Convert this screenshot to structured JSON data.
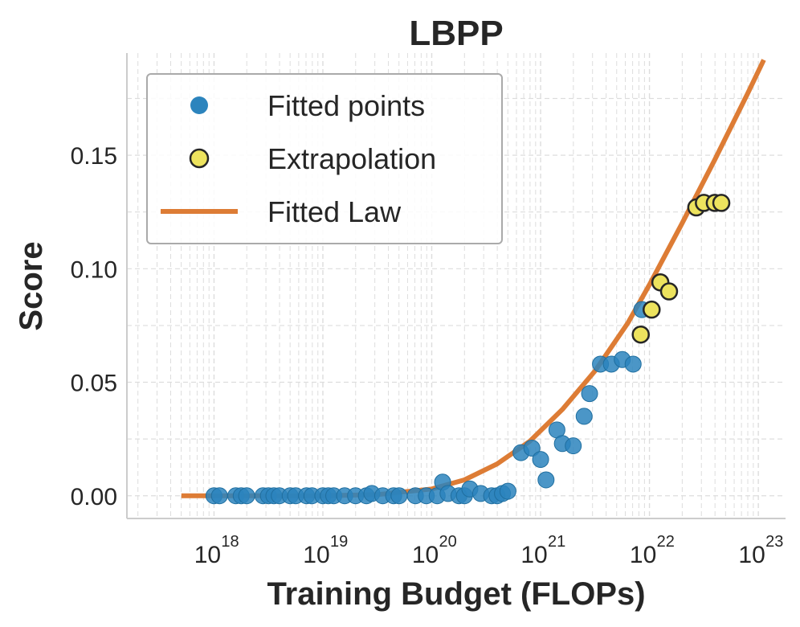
{
  "chart_data": {
    "type": "scatter",
    "title": "LBPP",
    "xlabel": "Training Budget (FLOPs)",
    "ylabel": "Score",
    "xscale": "log",
    "xlim_log10": [
      17.2,
      23.25
    ],
    "ylim": [
      -0.01,
      0.195
    ],
    "x_tick_base": "10",
    "x_ticks": [
      {
        "exp": "18",
        "log10": 18
      },
      {
        "exp": "19",
        "log10": 19
      },
      {
        "exp": "20",
        "log10": 20
      },
      {
        "exp": "21",
        "log10": 21
      },
      {
        "exp": "22",
        "log10": 22
      },
      {
        "exp": "23",
        "log10": 23
      }
    ],
    "y_ticks": [
      {
        "label": "0.00",
        "value": 0.0
      },
      {
        "label": "0.05",
        "value": 0.05
      },
      {
        "label": "0.10",
        "value": 0.1
      },
      {
        "label": "0.15",
        "value": 0.15
      }
    ],
    "grid": true,
    "legend_position": "top-left",
    "legend": {
      "fitted": "Fitted points",
      "extrap": "Extrapolation",
      "law": "Fitted Law"
    },
    "colors": {
      "fitted": "#2c84bd",
      "extrap": "#ede35e",
      "law": "#dd7c35",
      "text": "#262626",
      "grid": "#dddddd"
    },
    "fitted_law": {
      "log10_x": [
        17.7,
        18.0,
        18.5,
        19.0,
        19.5,
        20.0,
        20.3,
        20.6,
        20.9,
        21.2,
        21.5,
        21.8,
        22.0,
        22.3,
        22.6,
        22.9,
        23.05
      ],
      "y": [
        0.0,
        0.0,
        0.0,
        0.0,
        0.0005,
        0.003,
        0.007,
        0.014,
        0.024,
        0.038,
        0.055,
        0.076,
        0.093,
        0.12,
        0.148,
        0.177,
        0.192
      ]
    },
    "series": [
      {
        "name": "Fitted points",
        "log10_x": [
          18.0,
          18.05,
          18.2,
          18.25,
          18.3,
          18.45,
          18.5,
          18.55,
          18.6,
          18.7,
          18.75,
          18.85,
          18.9,
          19.0,
          19.05,
          19.1,
          19.2,
          19.3,
          19.4,
          19.45,
          19.55,
          19.65,
          19.7,
          19.85,
          19.95,
          20.05,
          20.1,
          20.15,
          20.25,
          20.3,
          20.35,
          20.45,
          20.55,
          20.6,
          20.65,
          20.7,
          20.82,
          20.92,
          21.0,
          21.05,
          21.15,
          21.2,
          21.3,
          21.4,
          21.45,
          21.55,
          21.65,
          21.75,
          21.85
        ],
        "values": [
          0.0,
          0.0,
          0.0,
          0.0,
          0.0,
          0.0,
          0.0,
          0.0,
          0.0,
          0.0,
          0.0,
          0.0,
          0.0,
          0.0,
          0.0,
          0.0,
          0.0,
          0.0,
          0.0,
          0.001,
          0.0,
          0.0,
          0.0,
          0.0,
          0.0,
          0.0,
          0.006,
          0.001,
          0.0,
          0.0,
          0.003,
          0.001,
          0.0,
          0.0,
          0.001,
          0.002,
          0.019,
          0.021,
          0.016,
          0.007,
          0.029,
          0.023,
          0.022,
          0.035,
          0.045,
          0.058,
          0.058,
          0.06,
          0.058
        ]
      },
      {
        "name": "Extrapolation",
        "log10_x": [
          21.92,
          22.02,
          22.1,
          22.18,
          22.43,
          22.5,
          22.6,
          22.66
        ],
        "values": [
          0.071,
          0.082,
          0.094,
          0.09,
          0.127,
          0.129,
          0.129,
          0.129
        ]
      }
    ],
    "extra_fitted": {
      "log10_x": [
        21.93
      ],
      "values": [
        0.082
      ]
    }
  }
}
